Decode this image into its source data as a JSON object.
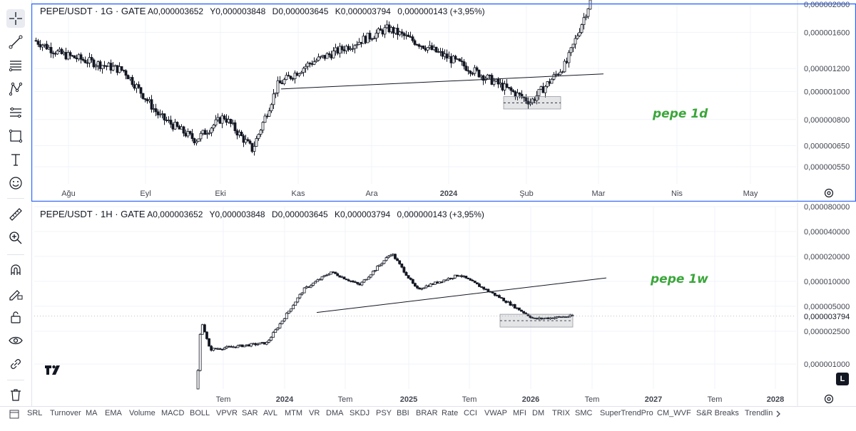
{
  "toolbar": {
    "tools": [
      "crosshair-icon",
      "trend-line-icon",
      "fib-lines-icon",
      "pattern-icon",
      "measure-lines-icon",
      "rectangle-icon",
      "text-tool-icon",
      "emoji-icon",
      "ruler-icon",
      "zoom-icon",
      "magnet-icon",
      "pencil-lock-icon",
      "lock-icon",
      "eye-icon",
      "link-icon",
      "trash-icon"
    ]
  },
  "pane1": {
    "symbol": "PEPE/USDT · 1G · GATE",
    "open_label": "A",
    "open": "0,000003652",
    "high_label": "Y",
    "high": "0,000003848",
    "low_label": "D",
    "low": "0,000003645",
    "close_label": "K",
    "close": "0,000003794",
    "change": "0,000000143 (+3,95%)",
    "note": "pepe 1d"
  },
  "pane2": {
    "symbol": "PEPE/USDT · 1H · GATE",
    "open_label": "A",
    "open": "0,000003652",
    "high_label": "Y",
    "high": "0,000003848",
    "low_label": "D",
    "low": "0,000003645",
    "close_label": "K",
    "close": "0,000003794",
    "change": "0,000000143 (+3,95%)",
    "note": "pepe 1w",
    "last_price_label": "0,000003794",
    "log_button": "L"
  },
  "bottom_indicators": [
    "SRL",
    "Turnover",
    "MA",
    "EMA",
    "Volume",
    "MACD",
    "BOLL",
    "VPVR",
    "SAR",
    "AVL",
    "MTM",
    "VR",
    "DMA",
    "SKDJ",
    "PSY",
    "BBI",
    "BRAR",
    "Rate",
    "CCI",
    "VWAP",
    "MFI",
    "DM",
    "TRIX",
    "SMC",
    "SuperTrendPro",
    "CM_WVF",
    "S&R Breaks",
    "Trendlin"
  ],
  "chart_data": [
    {
      "type": "candlestick",
      "title": "PEPE/USDT · 1G · GATE",
      "scale": "log",
      "x_ticks": [
        "Ağu",
        "Eyl",
        "Eki",
        "Kas",
        "Ara",
        "2024",
        "Şub",
        "Mar",
        "Nis",
        "May"
      ],
      "y_ticks": [
        "0,000002000",
        "0,000001600",
        "0,000001200",
        "0,000001000",
        "0,000000800",
        "0,000000650",
        "0,000000550"
      ],
      "y_tick_values": [
        2e-06,
        1.6e-06,
        1.2e-06,
        1e-06,
        8e-07,
        6.5e-07,
        5.5e-07
      ],
      "ylim": [
        4.8e-07,
        2e-06
      ],
      "close_path_knots": [
        {
          "t": "Ağu",
          "v": 1.5e-06
        },
        {
          "t": "Ağu",
          "v": 1.35e-06
        },
        {
          "t": "Eyl",
          "v": 1.18e-06
        },
        {
          "t": "Eyl",
          "v": 8.2e-07
        },
        {
          "t": "Eki",
          "v": 6.8e-07
        },
        {
          "t": "Eki",
          "v": 8.2e-07
        },
        {
          "t": "Eki",
          "v": 6.3e-07
        },
        {
          "t": "Kas",
          "v": 1.05e-06
        },
        {
          "t": "Kas",
          "v": 1.25e-06
        },
        {
          "t": "Ara",
          "v": 1.65e-06
        },
        {
          "t": "Ara",
          "v": 1.4e-06
        },
        {
          "t": "2024",
          "v": 1.18e-06
        },
        {
          "t": "Şub",
          "v": 9.2e-07
        },
        {
          "t": "Şub",
          "v": 1.25e-06
        },
        {
          "t": "Mar",
          "v": 2.1e-06
        }
      ],
      "trend_line": {
        "from": 1.02e-06,
        "to": 1.15e-06
      },
      "range_box": {
        "low": 8.7e-07,
        "high": 9.6e-07
      },
      "annotation": "pepe 1d"
    },
    {
      "type": "candlestick",
      "title": "PEPE/USDT · 1H · GATE",
      "scale": "log",
      "x_ticks": [
        "Tem",
        "2024",
        "Tem",
        "2025",
        "Tem",
        "2026",
        "Tem",
        "2027",
        "Tem",
        "2028"
      ],
      "y_ticks": [
        "0,000080000",
        "0,000040000",
        "0,000020000",
        "0,000010000",
        "0,000005000",
        "0,000002500",
        "0,000001000"
      ],
      "y_tick_values": [
        8e-05,
        4e-05,
        2e-05,
        1e-05,
        5e-06,
        2.5e-06,
        1e-06
      ],
      "ylim": [
        5e-07,
        8e-05
      ],
      "close_path_knots": [
        {
          "t": "Tem",
          "v": 5e-07
        },
        {
          "t": "Tem",
          "v": 3.5e-06
        },
        {
          "t": "Tem",
          "v": 1.5e-06
        },
        {
          "t": "2024",
          "v": 1.8e-06
        },
        {
          "t": "2024",
          "v": 8e-06
        },
        {
          "t": "Tem",
          "v": 1.3e-05
        },
        {
          "t": "Tem",
          "v": 9e-06
        },
        {
          "t": "2025",
          "v": 2.2e-05
        },
        {
          "t": "2025",
          "v": 8e-06
        },
        {
          "t": "Tem",
          "v": 1.2e-05
        },
        {
          "t": "Tem",
          "v": 6.5e-06
        },
        {
          "t": "2026",
          "v": 3.5e-06
        },
        {
          "t": "2026",
          "v": 3.8e-06
        }
      ],
      "last_price": 3.794e-06,
      "trend_line": {
        "from": 4.2e-06,
        "to": 1.1e-05
      },
      "range_box": {
        "low": 2.8e-06,
        "high": 4e-06
      },
      "annotation": "pepe 1w"
    }
  ]
}
